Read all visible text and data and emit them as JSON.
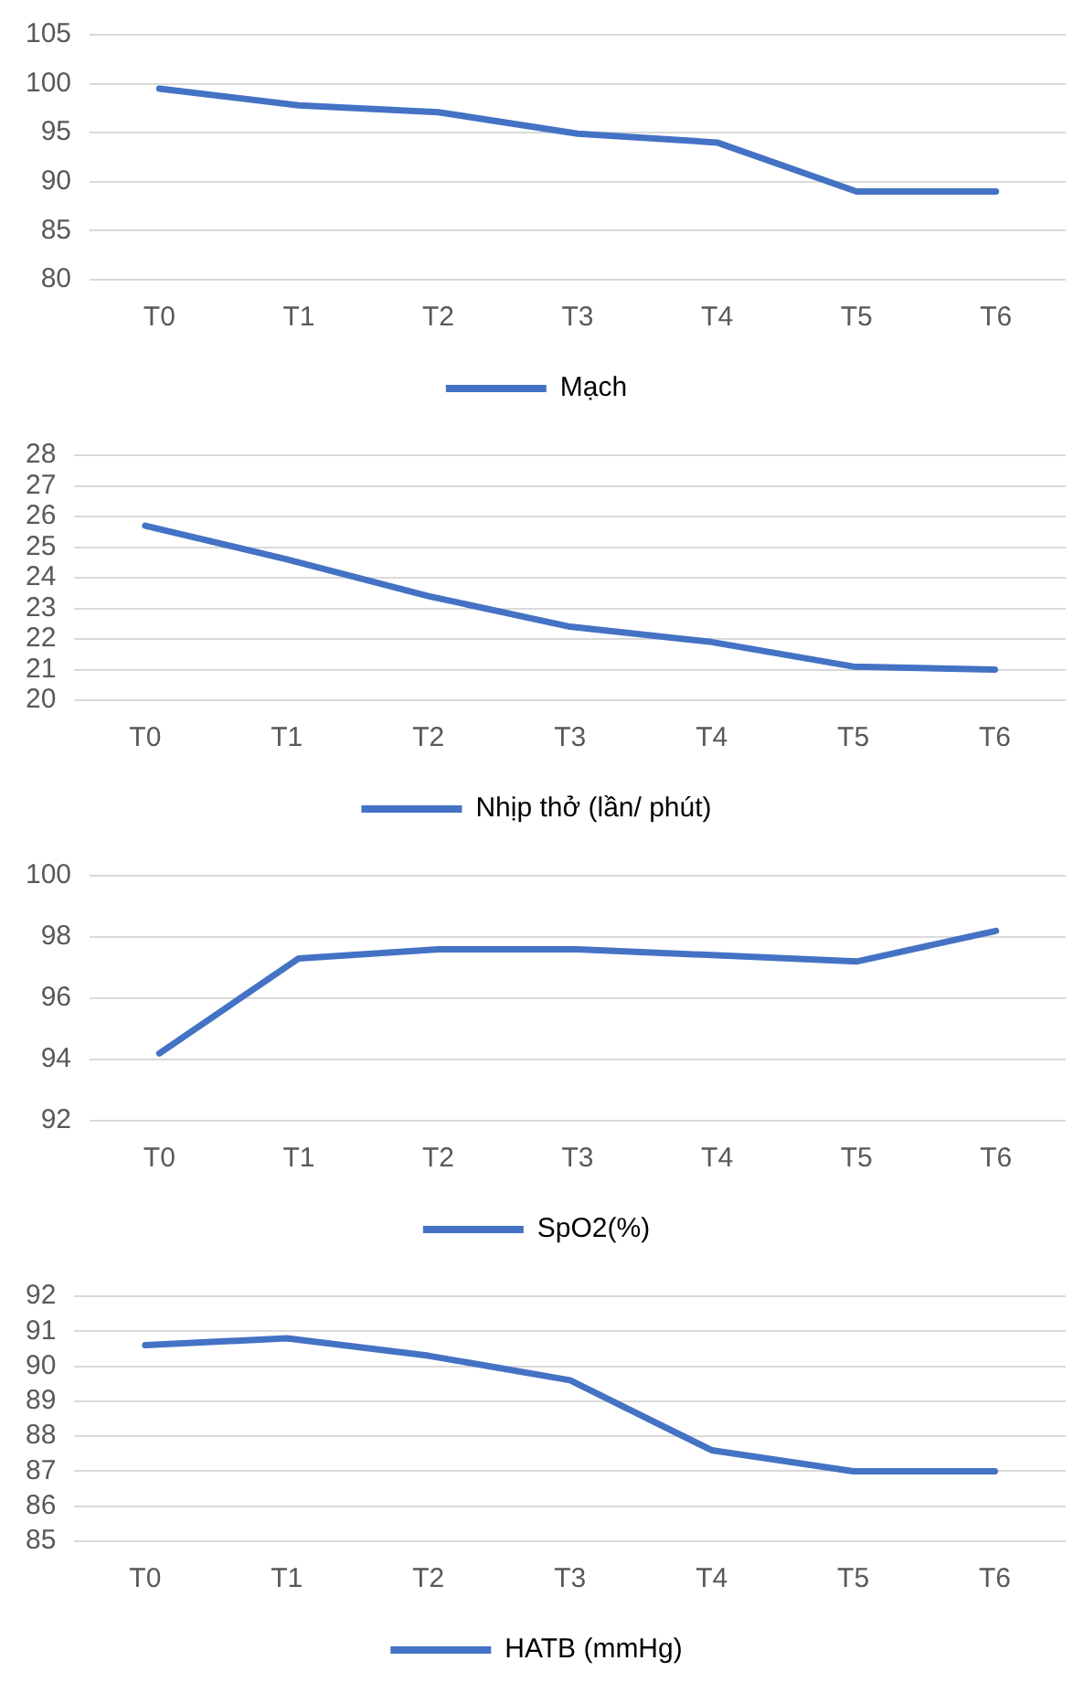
{
  "chart_data": [
    {
      "type": "line",
      "categories": [
        "T0",
        "T1",
        "T2",
        "T3",
        "T4",
        "T5",
        "T6"
      ],
      "series": [
        {
          "name": "Mạch",
          "color": "#4472c4",
          "values": [
            99.5,
            97.8,
            97.1,
            94.9,
            94.0,
            89.0,
            89.0
          ]
        }
      ],
      "ylim": [
        80,
        105
      ],
      "yticks": [
        80,
        85,
        90,
        95,
        100,
        105
      ],
      "grid": "y",
      "legend": "bottom",
      "marker": "none"
    },
    {
      "type": "line",
      "categories": [
        "T0",
        "T1",
        "T2",
        "T3",
        "T4",
        "T5",
        "T6"
      ],
      "series": [
        {
          "name": "Nhịp thở (lần/ phút)",
          "color": "#4472c4",
          "values": [
            25.7,
            24.6,
            23.4,
            22.4,
            21.9,
            21.1,
            21.0
          ]
        }
      ],
      "ylim": [
        20,
        28
      ],
      "yticks": [
        20,
        21,
        22,
        23,
        24,
        25,
        26,
        27,
        28
      ],
      "grid": "y",
      "legend": "bottom",
      "marker": "none"
    },
    {
      "type": "line",
      "categories": [
        "T0",
        "T1",
        "T2",
        "T3",
        "T4",
        "T5",
        "T6"
      ],
      "series": [
        {
          "name": "SpO2(%)",
          "color": "#4472c4",
          "values": [
            94.2,
            97.3,
            97.6,
            97.6,
            97.4,
            97.2,
            98.2
          ]
        }
      ],
      "ylim": [
        92,
        100
      ],
      "yticks": [
        92,
        94,
        96,
        98,
        100
      ],
      "grid": "y",
      "legend": "bottom",
      "marker": "none"
    },
    {
      "type": "line",
      "categories": [
        "T0",
        "T1",
        "T2",
        "T3",
        "T4",
        "T5",
        "T6"
      ],
      "series": [
        {
          "name": "HATB (mmHg)",
          "color": "#4472c4",
          "values": [
            90.6,
            90.8,
            90.3,
            89.6,
            87.6,
            87.0,
            87.0
          ]
        }
      ],
      "ylim": [
        85,
        92
      ],
      "yticks": [
        85,
        86,
        87,
        88,
        89,
        90,
        91,
        92
      ],
      "grid": "y",
      "legend": "bottom",
      "marker": "none"
    }
  ]
}
